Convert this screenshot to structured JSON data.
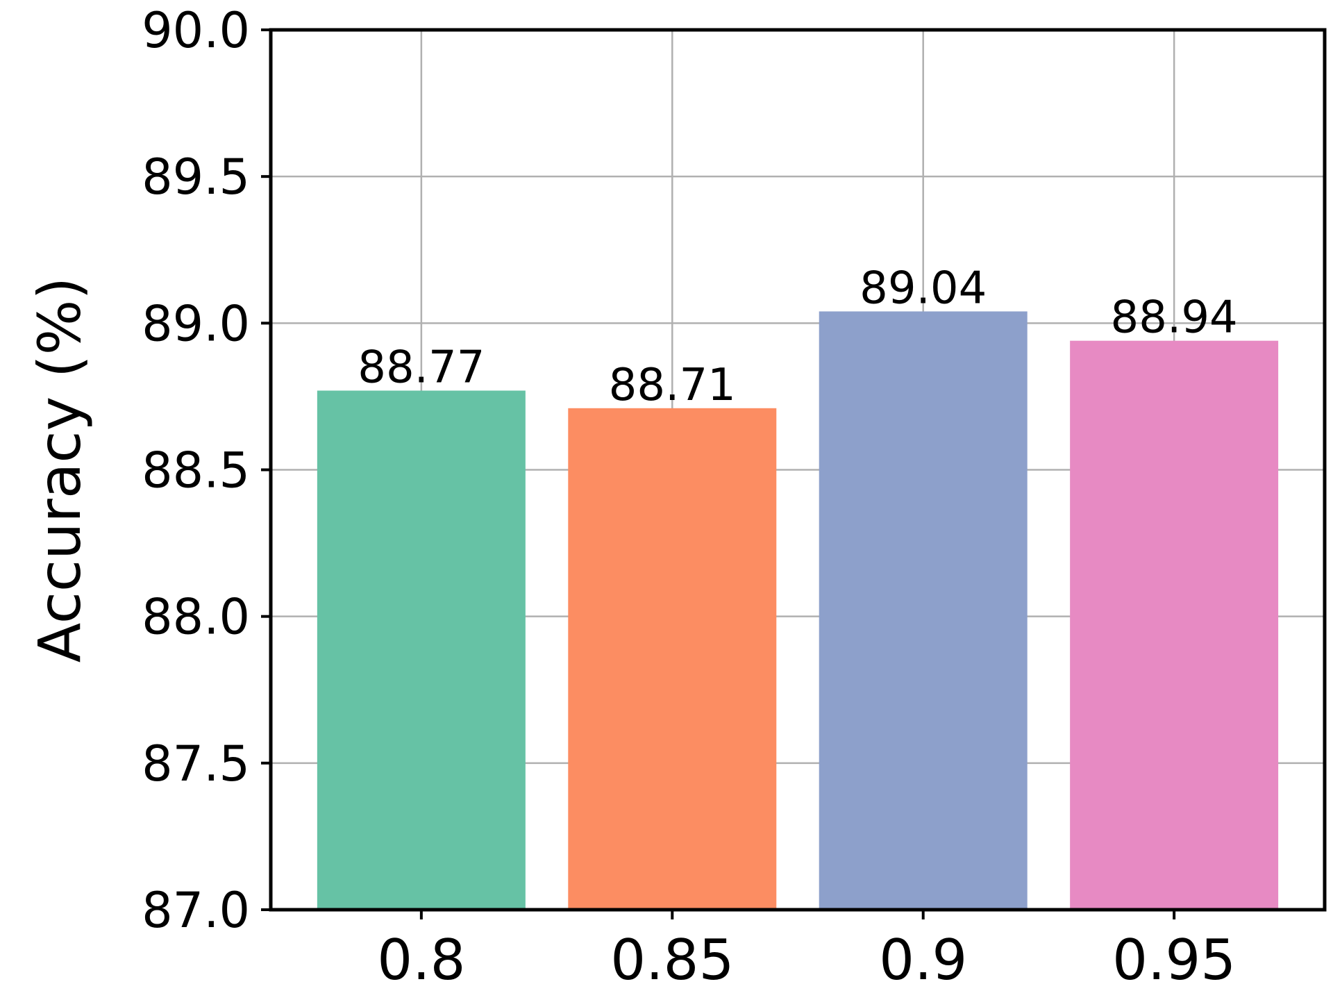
{
  "chart_data": {
    "type": "bar",
    "title": "",
    "xlabel": "",
    "ylabel": "Accuracy (%)",
    "categories": [
      "0.8",
      "0.85",
      "0.9",
      "0.95"
    ],
    "values": [
      88.77,
      88.71,
      89.04,
      88.94
    ],
    "value_labels": [
      "88.77",
      "88.71",
      "89.04",
      "88.94"
    ],
    "colors": [
      "#66c2a5",
      "#fc8d62",
      "#8da0cb",
      "#e78ac3"
    ],
    "ylim": [
      87.0,
      90.0
    ],
    "yticks": [
      87.0,
      87.5,
      88.0,
      88.5,
      89.0,
      89.5,
      90.0
    ],
    "ytick_labels": [
      "87.0",
      "87.5",
      "88.0",
      "88.5",
      "89.0",
      "89.5",
      "90.0"
    ],
    "grid": true
  }
}
